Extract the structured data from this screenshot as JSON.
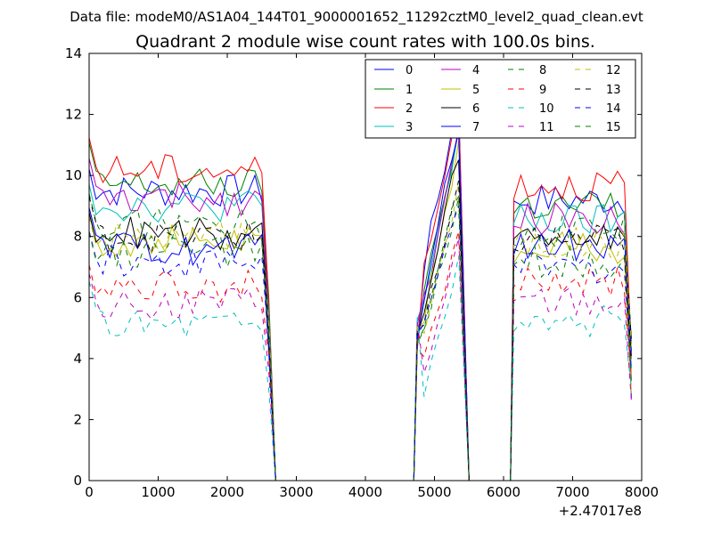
{
  "figure": {
    "suptitle": "Data file: modeM0/AS1A04_144T01_9000001652_11292cztM0_level2_quad_clean.evt"
  },
  "chart_data": {
    "type": "line",
    "title": "Quadrant 2 module wise count rates with 100.0s bins.",
    "xlabel": "",
    "ylabel": "",
    "x_offset_label": "+2.47017e8",
    "xlim": [
      0,
      8000
    ],
    "ylim": [
      0,
      14
    ],
    "xticks": [
      0,
      1000,
      2000,
      3000,
      4000,
      5000,
      6000,
      7000,
      8000
    ],
    "xtick_labels": [
      "0",
      "1000",
      "2000",
      "3000",
      "4000",
      "5000",
      "6000",
      "7000",
      "8000"
    ],
    "yticks": [
      0,
      2,
      4,
      6,
      8,
      10,
      12,
      14
    ],
    "ytick_labels": [
      "0",
      "2",
      "4",
      "6",
      "8",
      "10",
      "12",
      "14"
    ],
    "legend_position": "top-right",
    "legend_columns": 4,
    "segments": [
      {
        "start": 0,
        "end": 2600,
        "dropout_x": 2700
      },
      {
        "start": 4750,
        "end": 5300,
        "rise_x": 4700,
        "dropout_x": 5500
      },
      {
        "start": 6150,
        "end": 7800,
        "rise_x": 6100
      }
    ],
    "series": [
      {
        "name": "0",
        "color": "#0000ff",
        "dash": "solid",
        "levels": [
          9.5,
          10.5,
          9.2
        ]
      },
      {
        "name": "1",
        "color": "#008000",
        "dash": "solid",
        "levels": [
          9.7,
          9.6,
          9.0
        ]
      },
      {
        "name": "2",
        "color": "#ff0000",
        "dash": "solid",
        "levels": [
          10.2,
          10.2,
          9.7
        ]
      },
      {
        "name": "3",
        "color": "#00bfbf",
        "dash": "solid",
        "levels": [
          9.0,
          9.4,
          8.5
        ]
      },
      {
        "name": "4",
        "color": "#bf00bf",
        "dash": "solid",
        "levels": [
          9.2,
          9.3,
          8.6
        ]
      },
      {
        "name": "5",
        "color": "#bfbf00",
        "dash": "solid",
        "levels": [
          7.8,
          8.8,
          7.6
        ]
      },
      {
        "name": "6",
        "color": "#000000",
        "dash": "solid",
        "levels": [
          8.1,
          8.8,
          8.0
        ]
      },
      {
        "name": "7",
        "color": "#0000ff",
        "dash": "solid",
        "levels": [
          7.6,
          9.6,
          7.7
        ]
      },
      {
        "name": "8",
        "color": "#008000",
        "dash": "dashed",
        "levels": [
          8.4,
          8.6,
          8.2
        ]
      },
      {
        "name": "9",
        "color": "#ff0000",
        "dash": "dashed",
        "levels": [
          6.4,
          7.4,
          6.5
        ]
      },
      {
        "name": "10",
        "color": "#00bfbf",
        "dash": "dashed",
        "levels": [
          5.2,
          6.5,
          5.2
        ]
      },
      {
        "name": "11",
        "color": "#bf00bf",
        "dash": "dashed",
        "levels": [
          5.8,
          7.0,
          5.8
        ]
      },
      {
        "name": "12",
        "color": "#bfbf00",
        "dash": "dashed",
        "levels": [
          8.0,
          8.7,
          7.8
        ]
      },
      {
        "name": "13",
        "color": "#000000",
        "dash": "dashed",
        "levels": [
          8.0,
          8.7,
          7.9
        ]
      },
      {
        "name": "14",
        "color": "#0000ff",
        "dash": "dashed",
        "levels": [
          7.2,
          8.5,
          7.0
        ]
      },
      {
        "name": "15",
        "color": "#008000",
        "dash": "dashed",
        "levels": [
          7.5,
          8.7,
          7.2
        ]
      }
    ]
  }
}
